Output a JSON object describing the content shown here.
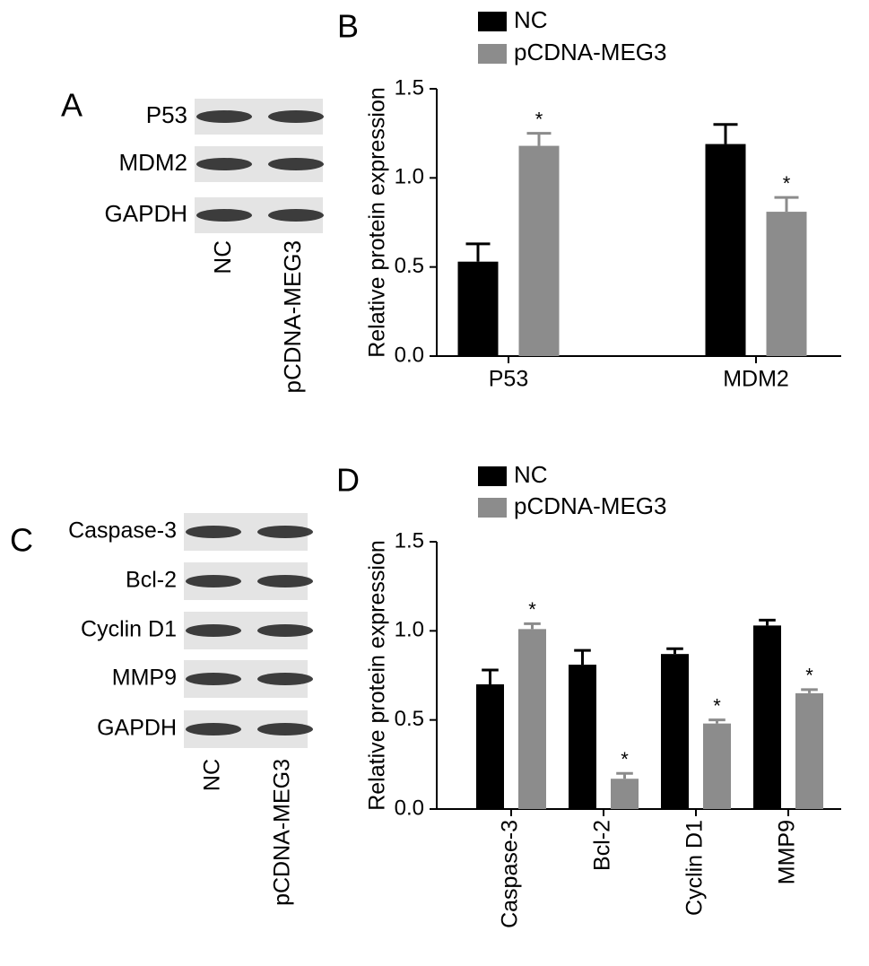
{
  "chart_data": [
    {
      "type": "blot",
      "panel": "A",
      "rows": [
        "P53",
        "MDM2",
        "GAPDH"
      ],
      "lanes": [
        "NC",
        "pCDNA-MEG3"
      ]
    },
    {
      "type": "bar",
      "panel": "B",
      "ylabel": "Relative protein expression",
      "categories": [
        "P53",
        "MDM2"
      ],
      "series": [
        {
          "name": "NC",
          "color": "#000000",
          "values": [
            0.53,
            1.19
          ],
          "errors": [
            0.1,
            0.11
          ]
        },
        {
          "name": "pCDNA-MEG3",
          "color": "#8c8c8c",
          "values": [
            1.18,
            0.81
          ],
          "errors": [
            0.07,
            0.08
          ],
          "markers": [
            "*",
            "*"
          ]
        }
      ],
      "ylim": [
        0,
        1.5
      ],
      "yticks": [
        {
          "value": 0,
          "label": "0.0"
        },
        0.5,
        {
          "value": 1,
          "label": "1.0"
        },
        1.5
      ]
    },
    {
      "type": "blot",
      "panel": "C",
      "rows": [
        "Caspase-3",
        "Bcl-2",
        "Cyclin D1",
        "MMP9",
        "GAPDH"
      ],
      "lanes": [
        "NC",
        "pCDNA-MEG3"
      ]
    },
    {
      "type": "bar",
      "panel": "D",
      "ylabel": "Relative protein expression",
      "categories": [
        "Caspase-3",
        "Bcl-2",
        "Cyclin D1",
        "MMP9"
      ],
      "series": [
        {
          "name": "NC",
          "color": "#000000",
          "values": [
            0.7,
            0.81,
            0.87,
            1.03
          ],
          "errors": [
            0.08,
            0.08,
            0.03,
            0.03
          ]
        },
        {
          "name": "pCDNA-MEG3",
          "color": "#8c8c8c",
          "values": [
            1.01,
            0.17,
            0.48,
            0.65
          ],
          "errors": [
            0.03,
            0.03,
            0.02,
            0.02
          ],
          "markers": [
            "*",
            "*",
            "*",
            "*"
          ]
        }
      ],
      "ylim": [
        0,
        1.5
      ],
      "yticks": [
        {
          "value": 0,
          "label": "0.0"
        },
        0.5,
        {
          "value": 1,
          "label": "1.0"
        },
        1.5
      ],
      "rotate_categories": true
    }
  ]
}
